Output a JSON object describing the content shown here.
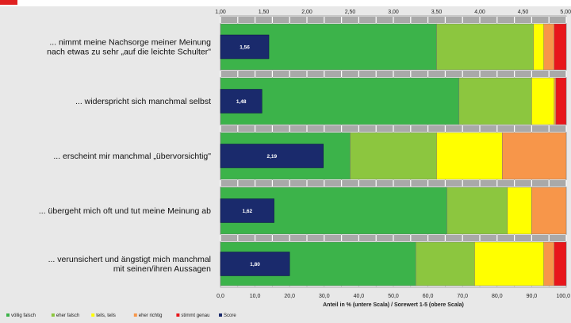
{
  "chart_data": {
    "type": "bar",
    "orientation": "horizontal",
    "stacked": true,
    "categories": [
      [
        "... nimmt meine Nachsorge meiner Meinung",
        "nach etwas zu sehr „auf die leichte Schulter\""
      ],
      [
        "... widerspricht sich manchmal selbst"
      ],
      [
        "... erscheint mir manchmal „übervorsichtig\""
      ],
      [
        "... übergeht mich oft und tut meine Meinung ab"
      ],
      [
        "... verunsichert und ängstigt mich manchmal",
        "mit seinen/ihren Aussagen"
      ]
    ],
    "series": [
      {
        "name": "völlig falsch",
        "color": "#3cb34a",
        "values": [
          62.5,
          69.0,
          37.5,
          65.5,
          56.5
        ]
      },
      {
        "name": "eher falsch",
        "color": "#8cc63f",
        "values": [
          28.0,
          21.0,
          25.0,
          17.5,
          17.0
        ]
      },
      {
        "name": "teils, teils",
        "color": "#ffff00",
        "values": [
          3.0,
          6.5,
          19.0,
          7.0,
          20.0
        ]
      },
      {
        "name": "eher richtig",
        "color": "#f7964a",
        "values": [
          3.0,
          0.5,
          18.5,
          10.0,
          3.0
        ]
      },
      {
        "name": "stimmt genau",
        "color": "#e8161b",
        "values": [
          3.5,
          3.0,
          0.0,
          0.0,
          3.5
        ]
      }
    ],
    "score": {
      "name": "Score",
      "color": "#1a2a6c",
      "values": [
        1.56,
        1.48,
        2.19,
        1.62,
        1.8
      ],
      "labels": [
        "1,56",
        "1,48",
        "2,19",
        "1,62",
        "1,80"
      ]
    },
    "bottom_axis": {
      "range": [
        0,
        100
      ],
      "ticks": [
        "0,0",
        "10,0",
        "20,0",
        "30,0",
        "40,0",
        "50,0",
        "60,0",
        "70,0",
        "80,0",
        "90,0",
        "100,0"
      ],
      "title": "Anteil in % (untere Scala) / Sorewert 1-5 (obere Scala)"
    },
    "top_axis": {
      "range": [
        1,
        5
      ],
      "ticks": [
        "1,00",
        "1,50",
        "2,00",
        "2,50",
        "3,00",
        "3,50",
        "4,00",
        "4,50",
        "5,00"
      ]
    },
    "grid": true,
    "legend_position": "bottom-left"
  }
}
